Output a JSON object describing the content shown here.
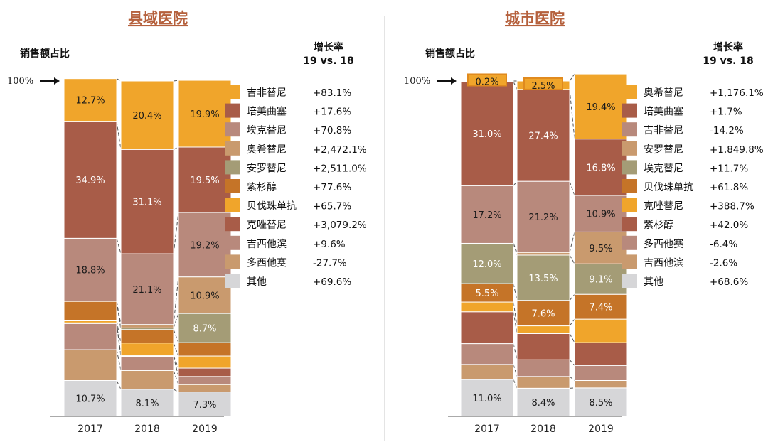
{
  "colors": {
    "orange": "#f0a52b",
    "brown": "#a85c48",
    "rose": "#b8897c",
    "tan": "#c99a6e",
    "olive": "#a49c76",
    "dark_orange": "#c57428",
    "gray": "#d6d6d8",
    "title": "#b5603c"
  },
  "chart_data": [
    {
      "type": "bar",
      "stacked": true,
      "title": "县域医院",
      "ylabel": "销售额占比",
      "top_marker": "100%",
      "growth_header_line1": "增长率",
      "growth_header_line2": "19 vs. 18",
      "categories": [
        "2017",
        "2018",
        "2019"
      ],
      "series": [
        {
          "name": "其他",
          "growth": "+69.6%",
          "color_key": "gray",
          "values": [
            10.7,
            8.1,
            7.3
          ],
          "labels": [
            "10.7%",
            "8.1%",
            "7.3%"
          ]
        },
        {
          "name": "多西他赛",
          "growth": "-27.7%",
          "color_key": "tan",
          "values": [
            9.2,
            5.6,
            2.2
          ],
          "labels": [
            "",
            "",
            ""
          ]
        },
        {
          "name": "吉西他滨",
          "growth": "+9.6%",
          "color_key": "rose",
          "values": [
            7.8,
            4.2,
            2.4
          ],
          "labels": [
            "",
            "",
            ""
          ]
        },
        {
          "name": "克唑替尼",
          "growth": "+3,079.2%",
          "color_key": "brown",
          "values": [
            0.2,
            0.2,
            2.5
          ],
          "labels": [
            "",
            "",
            ""
          ]
        },
        {
          "name": "贝伐珠单抗",
          "growth": "+65.7%",
          "color_key": "orange",
          "values": [
            0.6,
            3.8,
            3.6
          ],
          "labels": [
            "",
            "",
            ""
          ]
        },
        {
          "name": "紫杉醇",
          "growth": "+77.6%",
          "color_key": "dark_orange",
          "values": [
            5.8,
            4.0,
            4.0
          ],
          "labels": [
            "",
            "",
            ""
          ]
        },
        {
          "name": "安罗替尼",
          "growth": "+2,511.0%",
          "color_key": "olive",
          "values": [
            0.0,
            0.5,
            8.7
          ],
          "labels": [
            "",
            "",
            "8.7%"
          ]
        },
        {
          "name": "奥希替尼",
          "growth": "+2,472.1%",
          "color_key": "tan",
          "values": [
            0.0,
            1.0,
            10.9
          ],
          "labels": [
            "",
            "",
            "10.9%"
          ]
        },
        {
          "name": "埃克替尼",
          "growth": "+70.8%",
          "color_key": "rose",
          "values": [
            18.8,
            21.1,
            19.2
          ],
          "labels": [
            "18.8%",
            "21.1%",
            "19.2%"
          ]
        },
        {
          "name": "培美曲塞",
          "growth": "+17.6%",
          "color_key": "brown",
          "values": [
            34.9,
            31.1,
            19.5
          ],
          "labels": [
            "34.9%",
            "31.1%",
            "19.5%"
          ]
        },
        {
          "name": "吉非替尼",
          "growth": "+83.1%",
          "color_key": "orange",
          "values": [
            12.7,
            20.4,
            19.9
          ],
          "labels": [
            "12.7%",
            "20.4%",
            "19.9%"
          ]
        }
      ]
    },
    {
      "type": "bar",
      "stacked": true,
      "title": "城市医院",
      "ylabel": "销售额占比",
      "top_marker": "100%",
      "growth_header_line1": "增长率",
      "growth_header_line2": "19 vs. 18",
      "categories": [
        "2017",
        "2018",
        "2019"
      ],
      "series": [
        {
          "name": "其他",
          "growth": "+68.6%",
          "color_key": "gray",
          "values": [
            11.0,
            8.4,
            8.5
          ],
          "labels": [
            "11.0%",
            "8.4%",
            "8.5%"
          ]
        },
        {
          "name": "吉西他滨",
          "growth": "-2.6%",
          "color_key": "tan",
          "values": [
            4.5,
            3.5,
            2.2
          ],
          "labels": [
            "",
            "",
            ""
          ]
        },
        {
          "name": "多西他赛",
          "growth": "-6.4%",
          "color_key": "rose",
          "values": [
            6.2,
            5.0,
            4.5
          ],
          "labels": [
            "",
            "",
            ""
          ]
        },
        {
          "name": "紫杉醇",
          "growth": "+42.0%",
          "color_key": "brown",
          "values": [
            9.5,
            7.8,
            6.8
          ],
          "labels": [
            "",
            "",
            ""
          ]
        },
        {
          "name": "克唑替尼",
          "growth": "+388.7%",
          "color_key": "orange",
          "values": [
            2.9,
            2.3,
            7.0
          ],
          "labels": [
            "",
            "",
            ""
          ]
        },
        {
          "name": "贝伐珠单抗",
          "growth": "+61.8%",
          "color_key": "dark_orange",
          "values": [
            5.5,
            7.6,
            7.4
          ],
          "labels": [
            "5.5%",
            "7.6%",
            "7.4%"
          ]
        },
        {
          "name": "埃克替尼",
          "growth": "+11.7%",
          "color_key": "olive",
          "values": [
            12.0,
            13.5,
            9.1
          ],
          "labels": [
            "12.0%",
            "13.5%",
            "9.1%"
          ]
        },
        {
          "name": "安罗替尼",
          "growth": "+1,849.8%",
          "color_key": "tan",
          "values": [
            0.0,
            0.8,
            9.5
          ],
          "labels": [
            "",
            "",
            "9.5%"
          ]
        },
        {
          "name": "吉非替尼",
          "growth": "-14.2%",
          "color_key": "rose",
          "values": [
            17.2,
            21.2,
            10.9
          ],
          "labels": [
            "17.2%",
            "21.2%",
            "10.9%"
          ]
        },
        {
          "name": "培美曲塞",
          "growth": "+1.7%",
          "color_key": "brown",
          "values": [
            31.0,
            27.4,
            16.8
          ],
          "labels": [
            "31.0%",
            "27.4%",
            "16.8%"
          ]
        },
        {
          "name": "奥希替尼",
          "growth": "+1,176.1%",
          "color_key": "orange",
          "values": [
            0.2,
            2.5,
            19.4
          ],
          "labels": [
            "0.2%",
            "2.5%",
            "19.4%"
          ]
        }
      ]
    }
  ]
}
